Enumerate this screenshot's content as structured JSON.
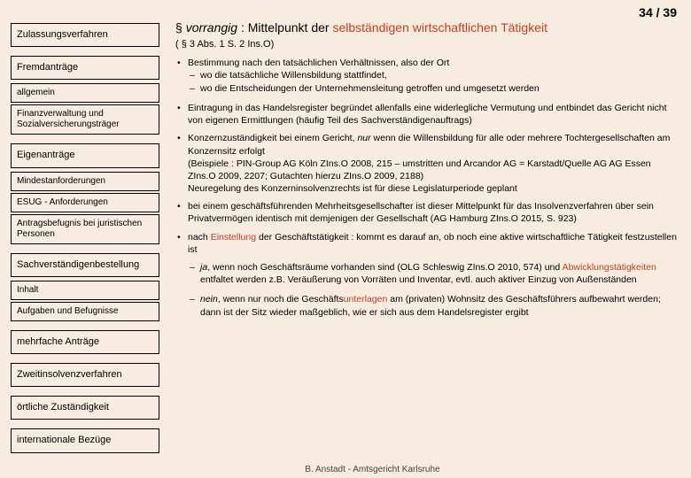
{
  "colors": {
    "background": "#f8ebe0",
    "accent": "#c04020",
    "text": "#000000"
  },
  "pageNumber": "34 / 39",
  "sidebar": {
    "items": [
      {
        "label": "Zulassungsverfahren",
        "level": "major",
        "first": true
      },
      {
        "label": "Fremdanträge",
        "level": "major"
      },
      {
        "label": "allgemein",
        "level": "minor"
      },
      {
        "label": "Finanzverwaltung und Sozialversicherungsträger",
        "level": "minor"
      },
      {
        "label": "Eigenanträge",
        "level": "major"
      },
      {
        "label": "Mindestanforderungen",
        "level": "minor"
      },
      {
        "label": "ESUG - Anforderungen",
        "level": "minor"
      },
      {
        "label": "Antragsbefugnis bei juristischen Personen",
        "level": "minor"
      },
      {
        "label": "Sachverständigen­bestellung",
        "level": "major"
      },
      {
        "label": "Inhalt",
        "level": "minor"
      },
      {
        "label": "Aufgaben und Befugnisse",
        "level": "minor"
      },
      {
        "label": "mehrfache Anträge",
        "level": "major"
      },
      {
        "label": "Zweitinsolvenzverfahren",
        "level": "major"
      },
      {
        "label": "örtliche Zuständigkeit",
        "level": "major"
      },
      {
        "label": "internationale Bezüge",
        "level": "major"
      }
    ]
  },
  "headline": {
    "bullet": "§",
    "lead": "vorrangig",
    "mid": " : Mittelpunkt der ",
    "accent": "selbständigen wirtschaftlichen Tätigkeit"
  },
  "subhead": "( § 3 Abs. 1 S. 2 Ins.O)",
  "bullets": {
    "b1": "Bestimmung nach den tatsächlichen Verhältnissen, also der Ort",
    "b1a": "wo die tatsächliche Willensbildung stattfindet,",
    "b1b": "wo die Entscheidungen der Unternehmensleitung getroffen und umgesetzt werden",
    "b2": "Eintragung in das Handelsregister begründet allenfalls eine widerlegliche Vermutung und entbindet das Gericht nicht von eigenen Ermittlungen (häufig Teil des Sachverständigenauftrags)",
    "b3a": "Konzernzuständigkeit bei einem Gericht, ",
    "b3b": "nur",
    "b3c": " wenn die Willensbildung für alle oder mehrere Tochtergesellschaften am Konzernsitz erfolgt",
    "b3d": "(Beispiele : PIN-Group AG Köln ZIns.O 2008, 215 – umstritten und Arcandor AG = Karstadt/Quelle AG AG Essen ZIns.O 2009, 2207; Gutachten hierzu ZIns.O 2009, 2188)",
    "b3e": "Neuregelung des Konzerninsolvenzrechts ist für diese Legislaturperiode geplant",
    "b4": "bei einem geschäftsführenden Mehrheitsgesellschafter ist dieser Mittelpunkt für das Insolvenzverfahren über sein Privatvermögen identisch mit demjenigen der Gesellschaft (AG Hamburg ZIns.O 2015, S. 923)",
    "b5a": "nach ",
    "b5b": "Einstellung",
    "b5c": " der Geschäftstätigkeit : kommt es darauf an, ob noch eine aktive wirtschaftliche Tätigkeit festzustellen ist",
    "b5_1a": "ja",
    "b5_1b": ", wenn noch Geschäftsräume vorhanden sind (OLG Schleswig ZIns.O 2010, 574) und ",
    "b5_1c": "Abwicklungstätigkeiten",
    "b5_1d": " entfaltet werden z.B. Veräußerung von Vorräten und Inventar, evtl. auch aktiver Einzug von Außenständen",
    "b5_2a": "nein",
    "b5_2b": ", wenn nur noch die Geschäfts",
    "b5_2c": "unterlagen",
    "b5_2d": " am (privaten) Wohnsitz des Geschäftsführers aufbewahrt werden; dann ist der Sitz wieder maßgeblich, wie er sich aus dem Handelsregister ergibt"
  },
  "footer": "B. Anstadt - Amtsgericht Karlsruhe"
}
